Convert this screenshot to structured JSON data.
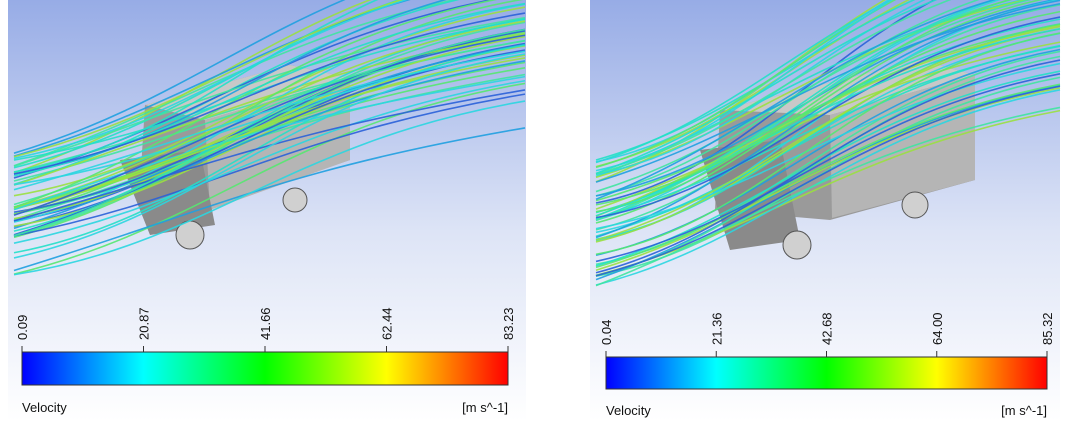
{
  "panels": [
    {
      "ticks": [
        "0.09",
        "20.87",
        "41.66",
        "62.44",
        "83.23"
      ],
      "legend_title": "Velocity",
      "units": "[m s^-1]"
    },
    {
      "ticks": [
        "0.04",
        "21.36",
        "42.68",
        "64.00",
        "85.32"
      ],
      "legend_title": "Velocity",
      "units": "[m s^-1]"
    }
  ]
}
